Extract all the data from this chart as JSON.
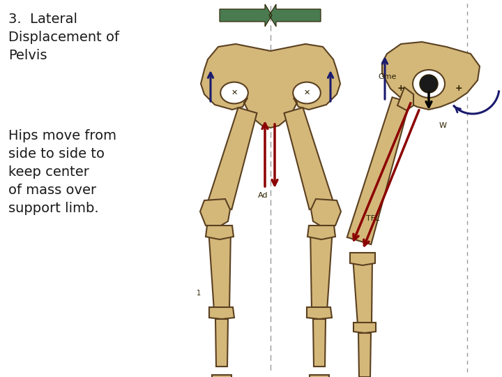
{
  "title_line1": "3.  Lateral",
  "title_line2": "Displacement of",
  "title_line3": "Pelvis",
  "body_line1": "Hips move from",
  "body_line2": "side to side to",
  "body_line3": "keep center",
  "body_line4": "of mass over",
  "body_line5": "support limb.",
  "background_color": "#ffffff",
  "text_color": "#1a1a1a",
  "bone_color": "#d4b87a",
  "bone_outline": "#5a4020",
  "dark_outline": "#2c2000",
  "arrow_dark_blue": "#1a1a6e",
  "arrow_dark_red": "#8b0000",
  "arrow_green": "#4a7a50",
  "label_gme": "Gme",
  "label_w": "W",
  "label_tfl": "TFL",
  "label_ad": "Ad",
  "dashed_color": "#999999"
}
